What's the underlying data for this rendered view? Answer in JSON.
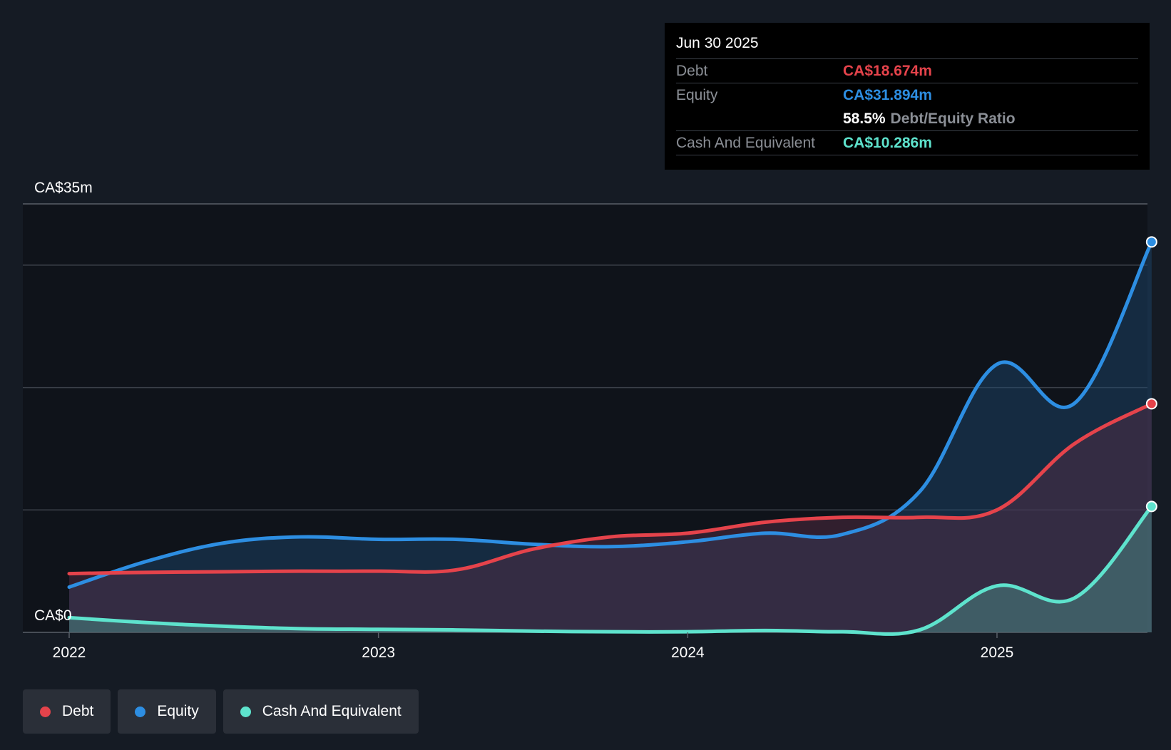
{
  "colors": {
    "debt": "#e5434b",
    "equity": "#2d8ee2",
    "cash": "#5ee3cd",
    "grid": "#3b4049",
    "axis_text": "#ffffff",
    "plot_bg": "#0f131a",
    "page_bg": "#151b24"
  },
  "tooltip": {
    "date": "Jun 30 2025",
    "debt_label": "Debt",
    "debt_value": "CA$18.674m",
    "equity_label": "Equity",
    "equity_value": "CA$31.894m",
    "ratio_value": "58.5%",
    "ratio_label": "Debt/Equity Ratio",
    "cash_label": "Cash And Equivalent",
    "cash_value": "CA$10.286m"
  },
  "legend": [
    {
      "label": "Debt",
      "color_key": "debt"
    },
    {
      "label": "Equity",
      "color_key": "equity"
    },
    {
      "label": "Cash And Equivalent",
      "color_key": "cash"
    }
  ],
  "chart_data": {
    "type": "area",
    "title": "",
    "xlabel": "",
    "ylabel": "",
    "ylim": [
      0,
      35
    ],
    "xlim": [
      2021.85,
      2025.5
    ],
    "y_top_label": "CA$35m",
    "y_bottom_label": "CA$0",
    "x_ticks": [
      {
        "value": 2022,
        "label": "2022"
      },
      {
        "value": 2023,
        "label": "2023"
      },
      {
        "value": 2024,
        "label": "2024"
      },
      {
        "value": 2025,
        "label": "2025"
      }
    ],
    "y_gridlines": [
      0,
      10,
      20,
      30,
      35
    ],
    "series": [
      {
        "name": "Equity",
        "color_key": "equity",
        "points": [
          [
            2022.0,
            3.7
          ],
          [
            2022.25,
            5.8
          ],
          [
            2022.5,
            7.3
          ],
          [
            2022.75,
            7.8
          ],
          [
            2023.0,
            7.6
          ],
          [
            2023.25,
            7.6
          ],
          [
            2023.5,
            7.2
          ],
          [
            2023.75,
            7.0
          ],
          [
            2024.0,
            7.4
          ],
          [
            2024.25,
            8.1
          ],
          [
            2024.5,
            8.0
          ],
          [
            2024.75,
            11.5
          ],
          [
            2025.0,
            21.9
          ],
          [
            2025.25,
            18.7
          ],
          [
            2025.5,
            31.894
          ]
        ]
      },
      {
        "name": "Debt",
        "color_key": "debt",
        "points": [
          [
            2022.0,
            4.8
          ],
          [
            2022.25,
            4.9
          ],
          [
            2022.5,
            4.95
          ],
          [
            2022.75,
            5.0
          ],
          [
            2023.0,
            5.0
          ],
          [
            2023.25,
            5.1
          ],
          [
            2023.5,
            6.8
          ],
          [
            2023.75,
            7.8
          ],
          [
            2024.0,
            8.1
          ],
          [
            2024.25,
            9.0
          ],
          [
            2024.5,
            9.4
          ],
          [
            2024.75,
            9.4
          ],
          [
            2025.0,
            10.0
          ],
          [
            2025.25,
            15.4
          ],
          [
            2025.5,
            18.674
          ]
        ]
      },
      {
        "name": "Cash And Equivalent",
        "color_key": "cash",
        "points": [
          [
            2022.0,
            1.2
          ],
          [
            2022.25,
            0.8
          ],
          [
            2022.5,
            0.5
          ],
          [
            2022.75,
            0.3
          ],
          [
            2023.0,
            0.25
          ],
          [
            2023.25,
            0.2
          ],
          [
            2023.5,
            0.1
          ],
          [
            2023.75,
            0.05
          ],
          [
            2024.0,
            0.05
          ],
          [
            2024.25,
            0.15
          ],
          [
            2024.5,
            0.05
          ],
          [
            2024.75,
            0.2
          ],
          [
            2025.0,
            3.8
          ],
          [
            2025.25,
            2.8
          ],
          [
            2025.5,
            10.286
          ]
        ]
      }
    ]
  }
}
